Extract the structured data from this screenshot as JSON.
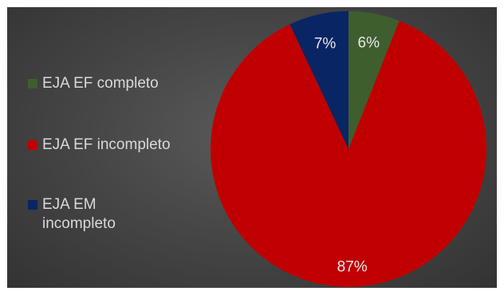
{
  "chart_data": {
    "type": "pie",
    "categories": [
      "EJA EF completo",
      "EJA EF incompleto",
      "EJA EM incompleto"
    ],
    "values": [
      6,
      87,
      7
    ],
    "data_labels": [
      "6%",
      "87%",
      "7%"
    ],
    "colors": [
      "#3e5e2e",
      "#c00000",
      "#0a2563"
    ],
    "legend_placement": "left"
  }
}
